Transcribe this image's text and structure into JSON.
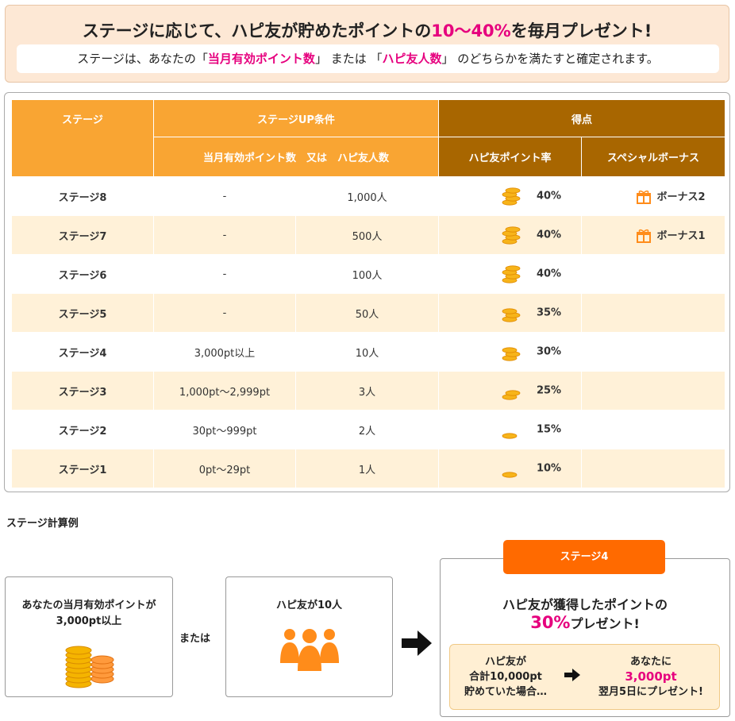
{
  "banner": {
    "title_pre": "ステージに応じて、ハピ友が貯めたポイントの",
    "title_highlight": "10〜40%",
    "title_post": "を毎月プレゼント!",
    "sub_pre": "ステージは、あなたの「",
    "sub_hl1": "当月有効ポイント数",
    "sub_mid1": "」 または 「",
    "sub_hl2": "ハピ友人数",
    "sub_post": "」 のどちらかを満たすと確定されます。"
  },
  "table": {
    "header": {
      "stage": "ステージ",
      "condition": "ステージUP条件",
      "condition_sub": "当月有効ポイント数　又は　ハピ友人数",
      "score": "得点",
      "rate": "ハピ友ポイント率",
      "bonus": "スペシャルボーナス"
    },
    "rows": [
      {
        "stage": "ステージ8",
        "points": "-",
        "friends": "1,000人",
        "rate": "40%",
        "coins": 4,
        "bonus": "ボーナス2"
      },
      {
        "stage": "ステージ7",
        "points": "-",
        "friends": "500人",
        "rate": "40%",
        "coins": 4,
        "bonus": "ボーナス1"
      },
      {
        "stage": "ステージ6",
        "points": "-",
        "friends": "100人",
        "rate": "40%",
        "coins": 4,
        "bonus": ""
      },
      {
        "stage": "ステージ5",
        "points": "-",
        "friends": "50人",
        "rate": "35%",
        "coins": 3,
        "bonus": ""
      },
      {
        "stage": "ステージ4",
        "points": "3,000pt以上",
        "friends": "10人",
        "rate": "30%",
        "coins": 3,
        "bonus": ""
      },
      {
        "stage": "ステージ3",
        "points": "1,000pt〜2,999pt",
        "friends": "3人",
        "rate": "25%",
        "coins": 2,
        "bonus": ""
      },
      {
        "stage": "ステージ2",
        "points": "30pt〜999pt",
        "friends": "2人",
        "rate": "15%",
        "coins": 1,
        "bonus": ""
      },
      {
        "stage": "ステージ1",
        "points": "0pt〜29pt",
        "friends": "1人",
        "rate": "10%",
        "coins": 1,
        "bonus": ""
      }
    ]
  },
  "example": {
    "title": "ステージ計算例",
    "box1_line1": "あなたの当月有効ポイントが",
    "box1_line2": "3,000pt以上",
    "or": "または",
    "box2_line1": "ハピ友が10人",
    "tag": "ステージ4",
    "result_line1": "ハピ友が獲得したポイントの",
    "result_pct": "30%",
    "result_post": "プレゼント!",
    "inner_left_1": "ハピ友が",
    "inner_left_2": "合計10,000pt",
    "inner_left_3": "貯めていた場合…",
    "inner_right_1": "あなたに",
    "inner_right_amt": "3,000pt",
    "inner_right_3": "翌月5日にプレゼント!"
  },
  "colors": {
    "accent_pink": "#e6007e",
    "header_orange": "#f9a533",
    "header_brown": "#a86600",
    "tag_orange": "#ff6a00",
    "row_alt": "#fff1d8",
    "banner_bg": "#fde8d5"
  },
  "icons": [
    "coin-stack-icon",
    "gift-icon",
    "people-icon",
    "arrow-right-icon"
  ]
}
